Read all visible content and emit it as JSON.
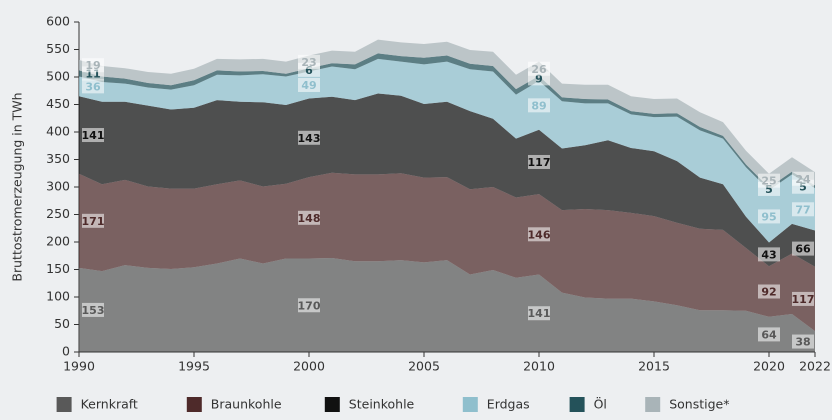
{
  "chart_data": {
    "type": "stacked_area",
    "y_label": "Bruttostromerzeugung in TWh",
    "x": [
      1990,
      1991,
      1992,
      1993,
      1994,
      1995,
      1996,
      1997,
      1998,
      1999,
      2000,
      2001,
      2002,
      2003,
      2004,
      2005,
      2006,
      2007,
      2008,
      2009,
      2010,
      2011,
      2012,
      2013,
      2014,
      2015,
      2016,
      2017,
      2018,
      2019,
      2020,
      2021,
      2022
    ],
    "xlim": [
      1990,
      2022
    ],
    "xticks": [
      1990,
      1995,
      2000,
      2005,
      2010,
      2015,
      2020,
      2022
    ],
    "ylim": [
      0,
      600
    ],
    "yticks": [
      0,
      50,
      100,
      150,
      200,
      250,
      300,
      350,
      400,
      450,
      500,
      550,
      600
    ],
    "legend_position": "bottom",
    "series": [
      {
        "name": "Kernkraft",
        "color": "#595959",
        "values": [
          153,
          147,
          158,
          153,
          151,
          154,
          161,
          170,
          161,
          170,
          170,
          171,
          165,
          165,
          167,
          163,
          167,
          141,
          149,
          135,
          141,
          108,
          99,
          97,
          97,
          92,
          85,
          76,
          76,
          75,
          64,
          69,
          38
        ]
      },
      {
        "name": "Braunkohle",
        "color": "#4e2a2a",
        "values": [
          171,
          158,
          155,
          148,
          146,
          143,
          144,
          142,
          140,
          136,
          148,
          155,
          158,
          158,
          158,
          154,
          151,
          155,
          151,
          146,
          146,
          150,
          161,
          161,
          156,
          155,
          150,
          148,
          146,
          114,
          92,
          110,
          117
        ]
      },
      {
        "name": "Steinkohle",
        "color": "#111111",
        "values": [
          141,
          150,
          142,
          147,
          144,
          147,
          153,
          143,
          153,
          143,
          143,
          138,
          135,
          147,
          141,
          134,
          137,
          142,
          124,
          107,
          117,
          112,
          116,
          127,
          118,
          118,
          112,
          93,
          83,
          57,
          43,
          54,
          66
        ]
      },
      {
        "name": "Erdgas",
        "color": "#8fbfcd",
        "values": [
          36,
          36,
          33,
          33,
          36,
          41,
          46,
          48,
          51,
          52,
          49,
          55,
          56,
          63,
          62,
          72,
          73,
          76,
          86,
          80,
          89,
          86,
          76,
          67,
          61,
          62,
          81,
          86,
          83,
          90,
          95,
          90,
          77
        ]
      },
      {
        "name": "Öl",
        "color": "#24525a",
        "values": [
          11,
          10,
          9,
          8,
          8,
          9,
          8,
          7,
          6,
          5,
          6,
          6,
          9,
          10,
          10,
          12,
          11,
          10,
          10,
          10,
          9,
          7,
          8,
          7,
          6,
          6,
          6,
          6,
          5,
          5,
          5,
          5,
          5
        ]
      },
      {
        "name": "Sonstige*",
        "color": "#a9b4b8",
        "values": [
          19,
          19,
          19,
          20,
          21,
          21,
          21,
          22,
          22,
          22,
          23,
          23,
          23,
          25,
          25,
          25,
          25,
          25,
          26,
          26,
          26,
          25,
          26,
          27,
          27,
          27,
          27,
          27,
          25,
          25,
          25,
          26,
          24
        ]
      }
    ]
  }
}
